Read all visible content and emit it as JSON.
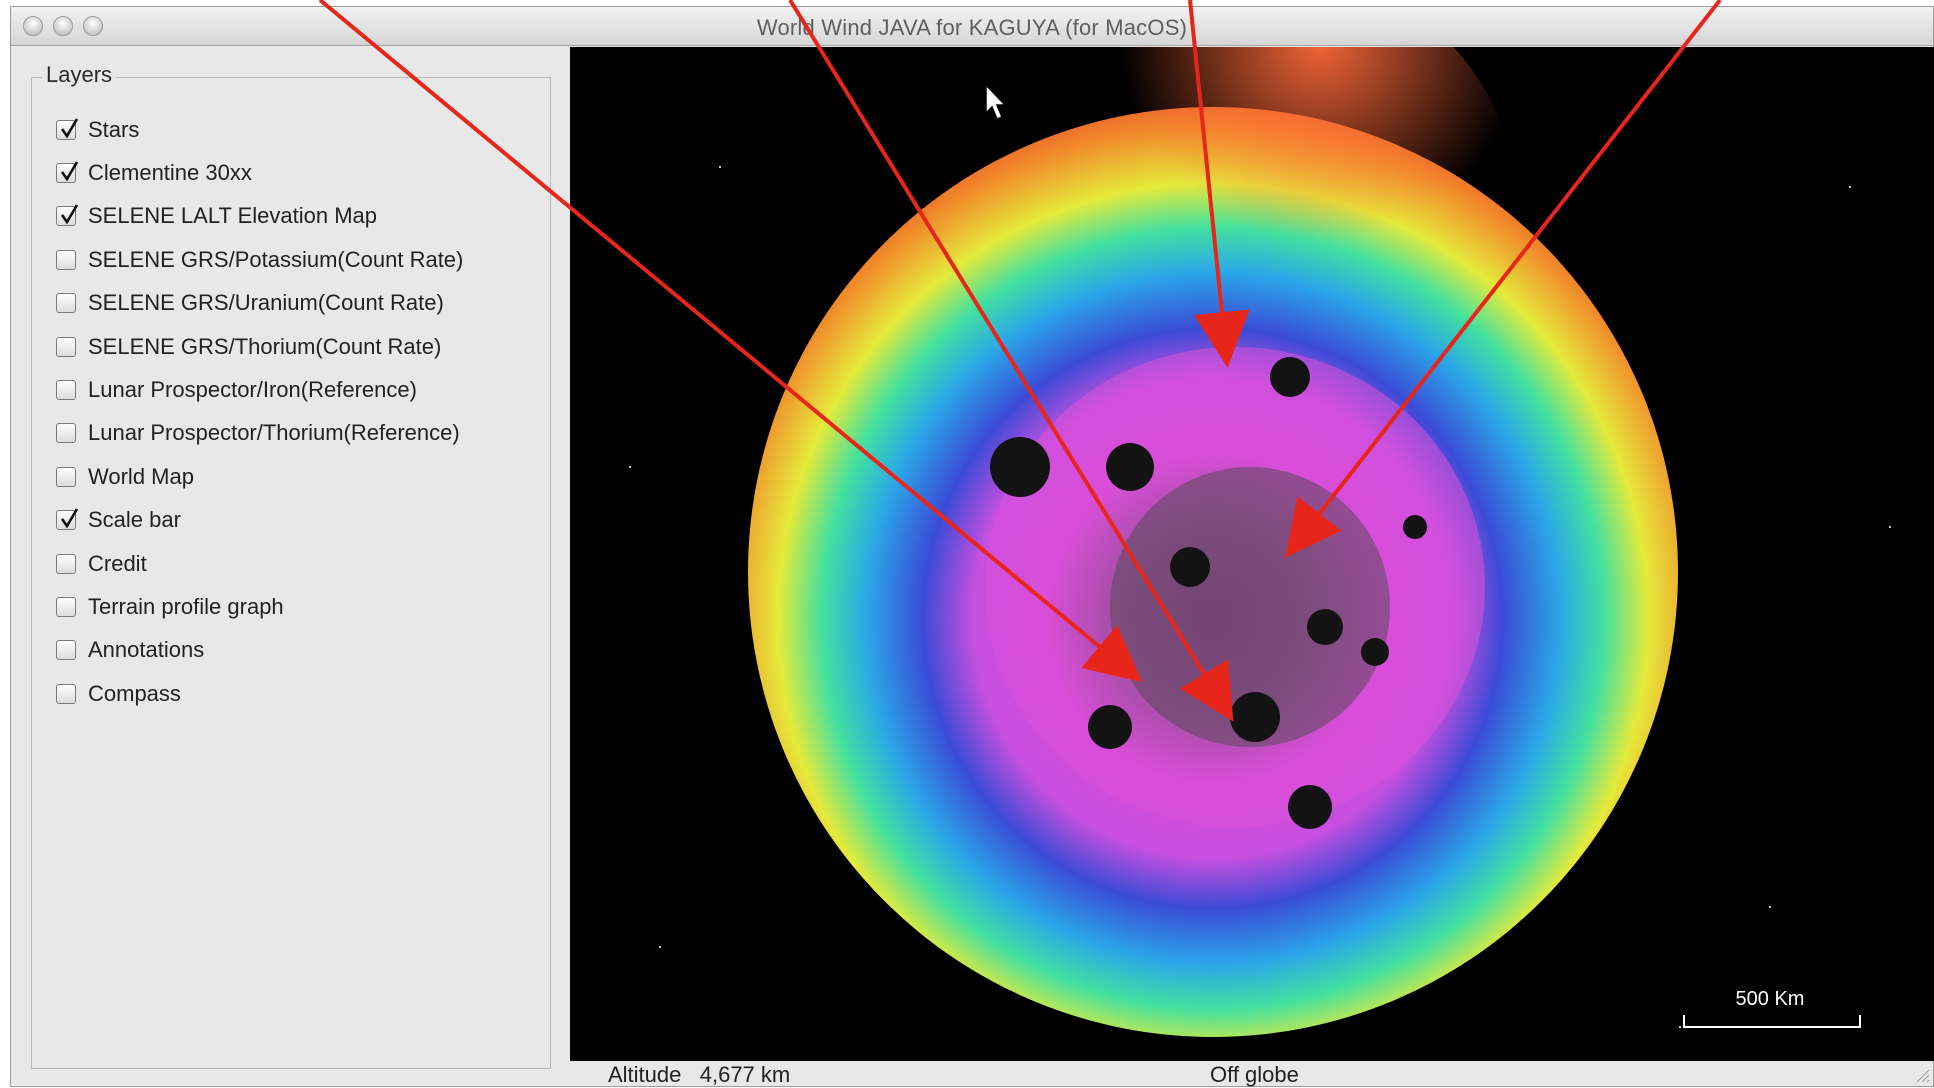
{
  "window": {
    "title": "World Wind JAVA for KAGUYA (for MacOS)"
  },
  "layers": {
    "title": "Layers",
    "items": [
      {
        "label": "Stars",
        "checked": true
      },
      {
        "label": "Clementine 30xx",
        "checked": true
      },
      {
        "label": "SELENE LALT Elevation Map",
        "checked": true
      },
      {
        "label": "SELENE GRS/Potassium(Count Rate)",
        "checked": false
      },
      {
        "label": "SELENE GRS/Uranium(Count Rate)",
        "checked": false
      },
      {
        "label": "SELENE GRS/Thorium(Count Rate)",
        "checked": false
      },
      {
        "label": "Lunar Prospector/Iron(Reference)",
        "checked": false
      },
      {
        "label": "Lunar Prospector/Thorium(Reference)",
        "checked": false
      },
      {
        "label": "World Map",
        "checked": false
      },
      {
        "label": "Scale bar",
        "checked": true
      },
      {
        "label": "Credit",
        "checked": false
      },
      {
        "label": "Terrain profile graph",
        "checked": false
      },
      {
        "label": "Annotations",
        "checked": false
      },
      {
        "label": "Compass",
        "checked": false
      }
    ]
  },
  "status": {
    "altitude_label": "Altitude",
    "altitude_value": "4,677 km",
    "position": "Off globe"
  },
  "scalebar": {
    "label": "500 Km"
  },
  "colors": {
    "arrow": "#e8251b",
    "background": "#000000"
  }
}
